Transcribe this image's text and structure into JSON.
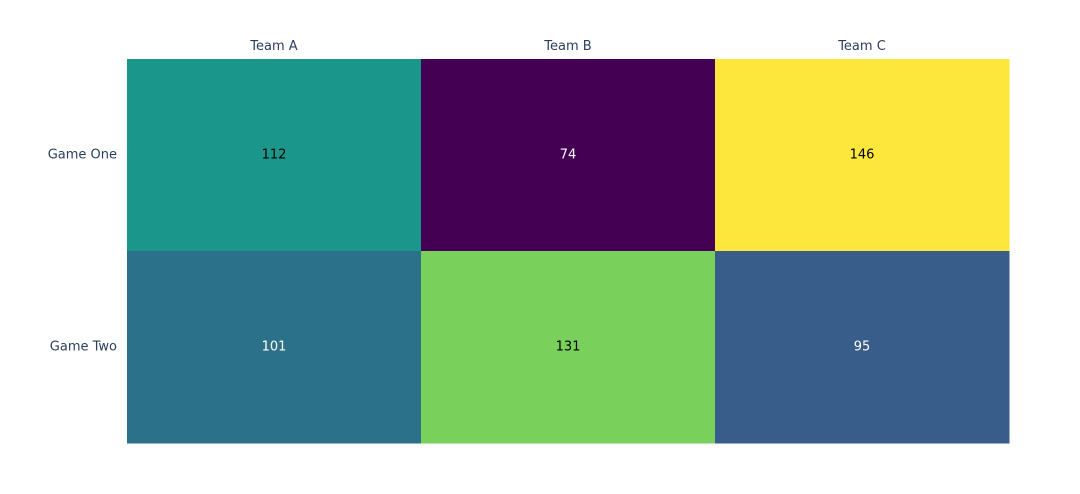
{
  "chart_data": {
    "type": "heatmap",
    "title": "",
    "xlabel": "",
    "ylabel": "",
    "x_categories": [
      "Team A",
      "Team B",
      "Team C"
    ],
    "y_categories": [
      "Game One",
      "Game Two"
    ],
    "values": [
      [
        112,
        74,
        146
      ],
      [
        101,
        131,
        95
      ]
    ],
    "x_axis_side": "top",
    "colorscale": "viridis",
    "zrange": [
      74,
      146
    ],
    "text_colors": {
      "light": "#ffffff",
      "dark": "#000000"
    },
    "cell_colors": [
      [
        "#1b968a",
        "#440154",
        "#fde73d"
      ],
      [
        "#2c718a",
        "#79d15c",
        "#385d8b"
      ]
    ],
    "grid": false,
    "colorbar": false
  }
}
